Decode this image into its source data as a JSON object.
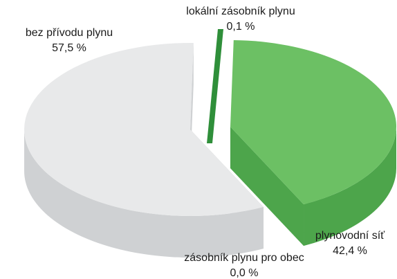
{
  "chart_data": {
    "type": "pie",
    "categories": [
      "bez přívodu plynu",
      "lokální zásobník plynu",
      "plynovodní síť",
      "zásobník plynu pro obec"
    ],
    "values": [
      57.5,
      0.1,
      42.4,
      0.0
    ],
    "value_labels": [
      "57,5 %",
      "0,1 %",
      "42,4 %",
      "0,0 %"
    ],
    "title": "",
    "style": "3d-exploded",
    "colors": {
      "bez_privodu_top": "#e8e9ea",
      "bez_privodu_side": "#cfd1d3",
      "lokalni_top": "#2f8f3a",
      "lokalni_side": "#3ea447",
      "plynovodni_top": "#6cc064",
      "plynovodni_side": "#4da54b",
      "zasobnik_obec_side": "#b9bbbd"
    }
  },
  "labels": {
    "bez": {
      "name": "bez přívodu plynu",
      "value": "57,5 %"
    },
    "lokalni": {
      "name": "lokální zásobník plynu",
      "value": "0,1 %"
    },
    "plynovodni": {
      "name": "plynovodní síť",
      "value": "42,4 %"
    },
    "zasobnik": {
      "name": "zásobník plynu pro obec",
      "value": "0,0 %"
    }
  }
}
